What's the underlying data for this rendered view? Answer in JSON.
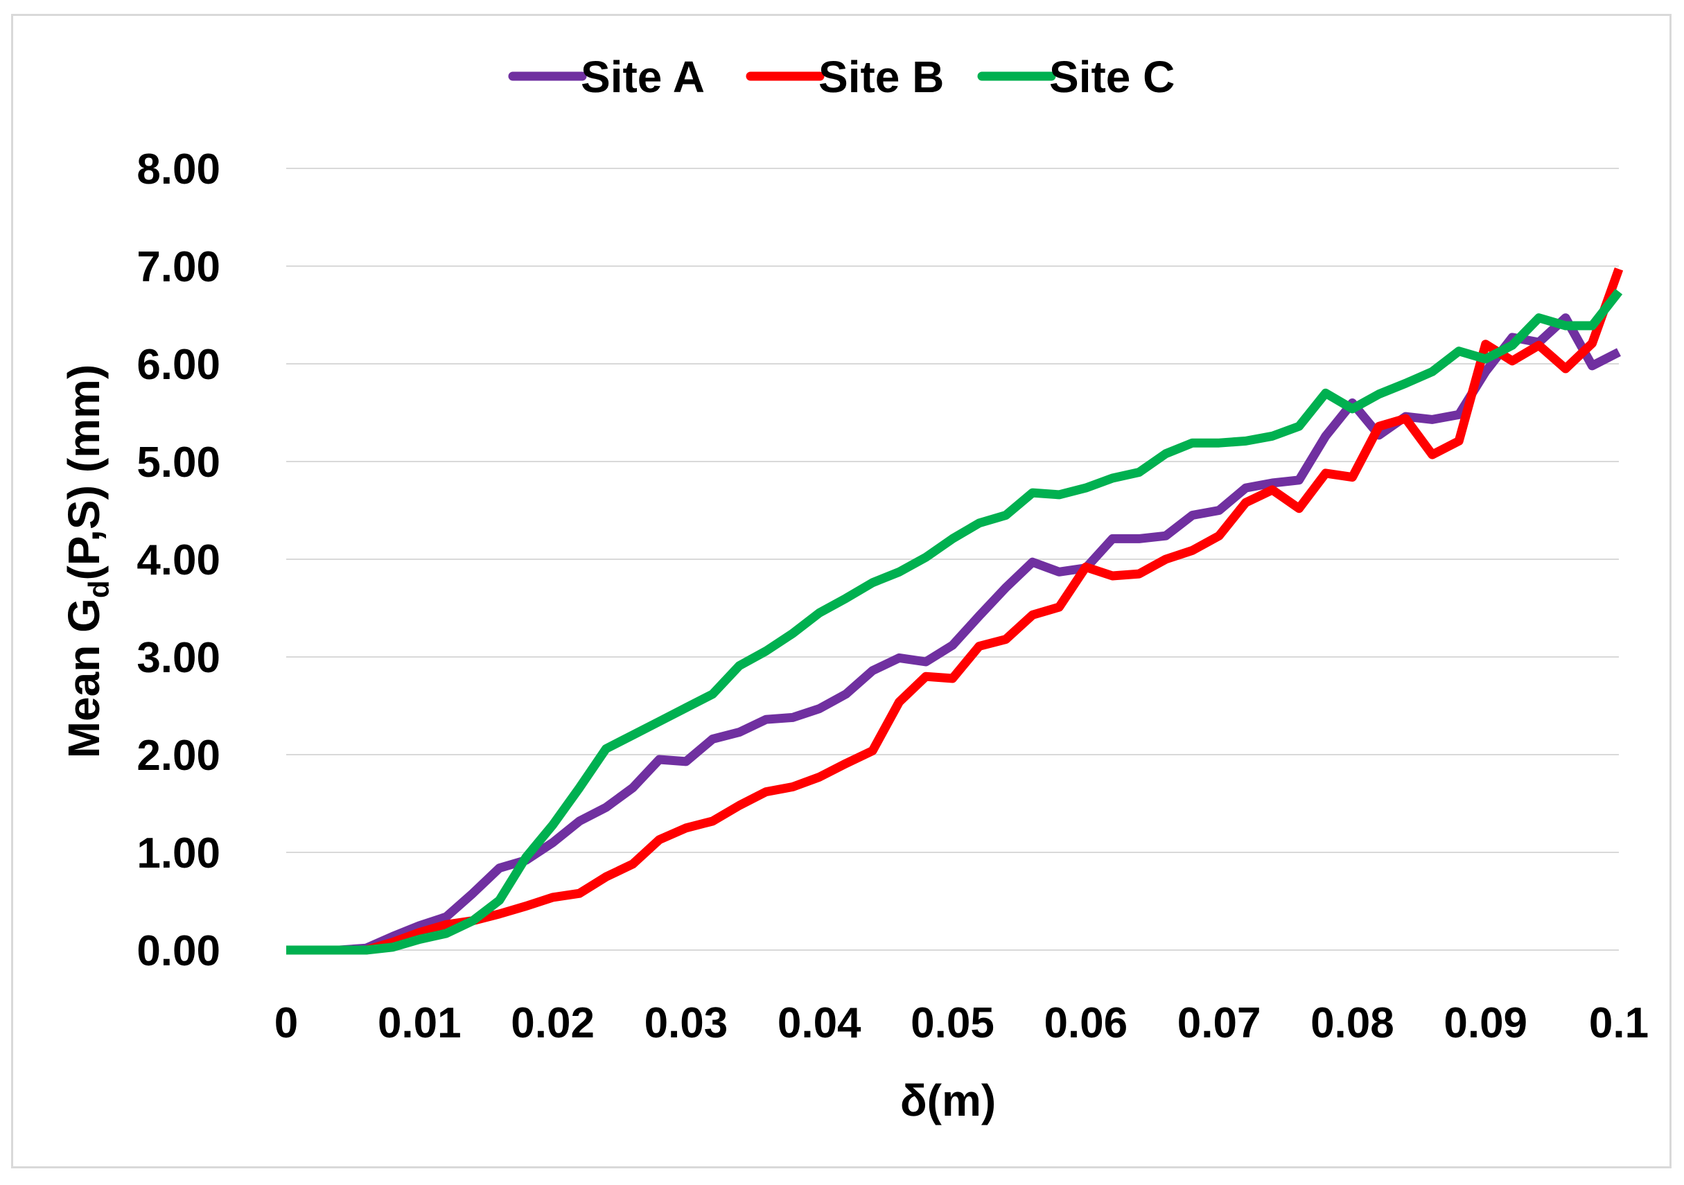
{
  "chart_data": {
    "type": "line",
    "title": "",
    "xlabel": "δ(m)",
    "ylabel_main": "Mean G",
    "ylabel_sub": "d",
    "ylabel_rest": "(P,S) (mm)",
    "xlim": [
      0,
      0.1
    ],
    "ylim": [
      0,
      8
    ],
    "x_ticks": [
      "0",
      "0.01",
      "0.02",
      "0.03",
      "0.04",
      "0.05",
      "0.06",
      "0.07",
      "0.08",
      "0.09",
      "0.1"
    ],
    "x_tick_values": [
      0,
      0.01,
      0.02,
      0.03,
      0.04,
      0.05,
      0.06,
      0.07,
      0.08,
      0.09,
      0.1
    ],
    "y_ticks": [
      "0.00",
      "1.00",
      "2.00",
      "3.00",
      "4.00",
      "5.00",
      "6.00",
      "7.00",
      "8.00"
    ],
    "y_tick_values": [
      0,
      1,
      2,
      3,
      4,
      5,
      6,
      7,
      8
    ],
    "grid": "horizontal",
    "legend_position": "top",
    "x": [
      0,
      0.002,
      0.004,
      0.006,
      0.008,
      0.01,
      0.012,
      0.014,
      0.016,
      0.018,
      0.02,
      0.022,
      0.024,
      0.026,
      0.028,
      0.03,
      0.032,
      0.034,
      0.036,
      0.038,
      0.04,
      0.042,
      0.044,
      0.046,
      0.048,
      0.05,
      0.052,
      0.054,
      0.056,
      0.058,
      0.06,
      0.062,
      0.064,
      0.066,
      0.068,
      0.07,
      0.072,
      0.074,
      0.076,
      0.078,
      0.08,
      0.082,
      0.084,
      0.086,
      0.088,
      0.09,
      0.092,
      0.094,
      0.096,
      0.098,
      0.1
    ],
    "series": [
      {
        "name": "Site A",
        "color": "#7030a0",
        "values": [
          0,
          0,
          0,
          0.02,
          0.14,
          0.25,
          0.34,
          0.58,
          0.84,
          0.92,
          1.1,
          1.32,
          1.46,
          1.66,
          1.95,
          1.93,
          2.16,
          2.23,
          2.36,
          2.38,
          2.47,
          2.62,
          2.86,
          2.99,
          2.95,
          3.12,
          3.42,
          3.71,
          3.97,
          3.87,
          3.91,
          4.21,
          4.21,
          4.24,
          4.45,
          4.5,
          4.73,
          4.78,
          4.81,
          5.26,
          5.6,
          5.27,
          5.46,
          5.43,
          5.48,
          5.92,
          6.27,
          6.22,
          6.47,
          5.98,
          6.12
        ]
      },
      {
        "name": "Site B",
        "color": "#ff0000",
        "values": [
          0,
          0,
          0,
          0,
          0.08,
          0.18,
          0.26,
          0.3,
          0.37,
          0.45,
          0.54,
          0.58,
          0.75,
          0.88,
          1.13,
          1.25,
          1.32,
          1.48,
          1.62,
          1.67,
          1.77,
          1.91,
          2.04,
          2.54,
          2.8,
          2.78,
          3.11,
          3.18,
          3.43,
          3.51,
          3.92,
          3.83,
          3.85,
          4.0,
          4.09,
          4.24,
          4.58,
          4.71,
          4.52,
          4.88,
          4.84,
          5.36,
          5.44,
          5.07,
          5.21,
          6.2,
          6.03,
          6.19,
          5.95,
          6.21,
          6.97
        ]
      },
      {
        "name": "Site C",
        "color": "#00b050",
        "values": [
          0,
          0,
          0,
          0,
          0.03,
          0.11,
          0.17,
          0.3,
          0.51,
          0.95,
          1.28,
          1.66,
          2.06,
          2.2,
          2.34,
          2.48,
          2.62,
          2.91,
          3.06,
          3.24,
          3.45,
          3.6,
          3.76,
          3.87,
          4.02,
          4.21,
          4.37,
          4.45,
          4.68,
          4.66,
          4.73,
          4.83,
          4.89,
          5.08,
          5.19,
          5.19,
          5.21,
          5.26,
          5.36,
          5.7,
          5.54,
          5.69,
          5.8,
          5.92,
          6.13,
          6.05,
          6.19,
          6.47,
          6.39,
          6.39,
          6.74
        ]
      }
    ]
  }
}
